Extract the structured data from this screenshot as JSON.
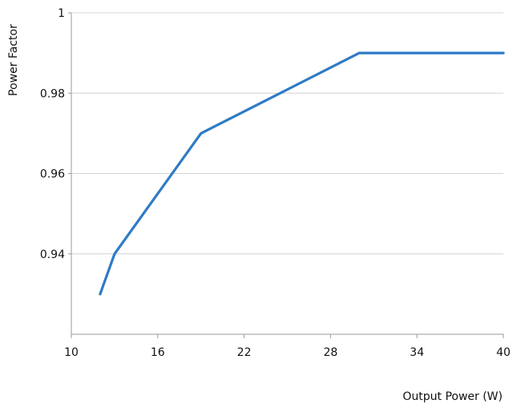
{
  "chart_data": {
    "type": "line",
    "title": "",
    "xlabel": "Output Power (W)",
    "ylabel": "Power Factor",
    "xlim": [
      10,
      40
    ],
    "ylim": [
      0.92,
      1.0
    ],
    "x_ticks": [
      "10",
      "16",
      "22",
      "28",
      "34",
      "40"
    ],
    "x_tick_values": [
      10,
      16,
      22,
      28,
      34,
      40
    ],
    "y_ticks": [
      "0.94",
      "0.96",
      "0.98",
      "1"
    ],
    "y_tick_values": [
      0.94,
      0.96,
      0.98,
      1.0
    ],
    "grid": "horizontal",
    "legend": "none",
    "colors": {
      "series": "#2e7bc6"
    },
    "series": [
      {
        "x": [
          12,
          13,
          19,
          30,
          40
        ],
        "y": [
          0.93,
          0.94,
          0.97,
          0.99,
          0.99
        ]
      }
    ]
  }
}
